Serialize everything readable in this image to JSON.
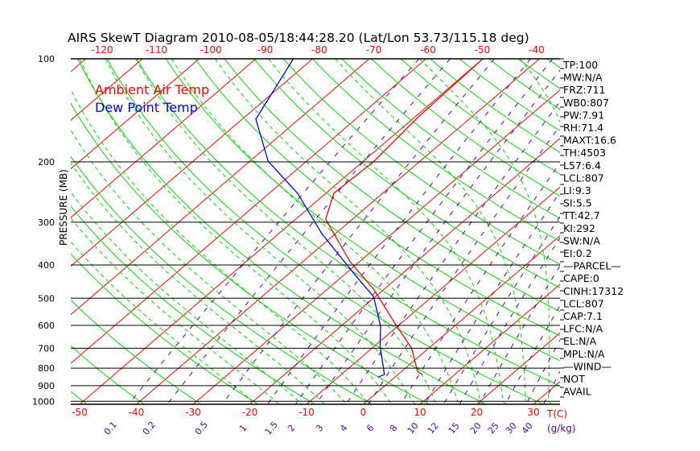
{
  "chart_data": {
    "type": "line",
    "subtype": "skew-t log-p",
    "title": "AIRS SkewT Diagram 2010-08-05/18:44:28.20 (Lat/Lon 53.73/115.18 deg)",
    "ylabel": "PRESSURE (MB)",
    "xlabel": "T(C)",
    "mixing_ratio_label": "(g/kg)",
    "pressure_ticks": [
      100,
      200,
      300,
      400,
      500,
      600,
      700,
      800,
      900,
      1000
    ],
    "pressure_range": [
      100,
      1050
    ],
    "top_temp_ticks": [
      -120,
      -110,
      -100,
      -90,
      -80,
      -70,
      -60,
      -50,
      -40
    ],
    "bottom_temp_ticks": [
      -50,
      -40,
      -30,
      -20,
      -10,
      0,
      10,
      20,
      30
    ],
    "mixing_ratio_ticks": [
      "0.1",
      "0.2",
      "0.5",
      "1",
      "1.5",
      "2",
      "3",
      "4",
      "6",
      "8",
      "10",
      "12",
      "15",
      "20",
      "25",
      "30",
      "40"
    ],
    "legend": [
      {
        "label": "Ambient Air Temp",
        "color": "#ff0000"
      },
      {
        "label": "Dew Point Temp",
        "color": "#0000ff"
      }
    ],
    "series": [
      {
        "name": "Ambient Air Temp",
        "color": "#ff0000",
        "points": [
          [
            -50,
            100
          ],
          [
            -49.4,
            148
          ],
          [
            -48.1,
            199
          ],
          [
            -48.6,
            247
          ],
          [
            -44.7,
            294
          ],
          [
            -31.7,
            391
          ],
          [
            -21.6,
            473
          ],
          [
            -11.4,
            588
          ],
          [
            -3,
            700
          ],
          [
            2.8,
            818
          ],
          [
            4.3,
            835
          ]
        ]
      },
      {
        "name": "Dew Point Temp",
        "color": "#0000ff",
        "points": [
          [
            -83.4,
            100
          ],
          [
            -77.6,
            150
          ],
          [
            -66.8,
            199
          ],
          [
            -55,
            247
          ],
          [
            -42.4,
            324
          ],
          [
            -28.5,
            424
          ],
          [
            -20.3,
            495
          ],
          [
            -13,
            604
          ],
          [
            -9,
            690
          ],
          [
            -2.4,
            835
          ],
          [
            -3,
            850
          ]
        ]
      }
    ],
    "colors": {
      "isotherm": "#ff0000",
      "dry_adiabat": "#00dd00",
      "moist_adiabat": "#00dd00",
      "mixing_ratio": "#5500aa",
      "axis": "#000000"
    }
  },
  "stats": [
    "TP:100",
    "MW:N/A",
    "FRZ:711",
    "WB0:807",
    "PW:7.91",
    "RH:71.4",
    "MAXT:16.6",
    "TH:4503",
    "L57:6.4",
    "LCL:807",
    "LI:9.3",
    "SI:5.5",
    "TT:42.7",
    "KI:292",
    "SW:N/A",
    "EI:0.2",
    "—PARCEL—",
    "CAPE:0",
    "CINH:17312",
    "LCL:807",
    "CAP:7.1",
    "LFC:N/A",
    "EL:N/A",
    "MPL:N/A",
    "—WIND—",
    " NOT",
    " AVAIL"
  ]
}
